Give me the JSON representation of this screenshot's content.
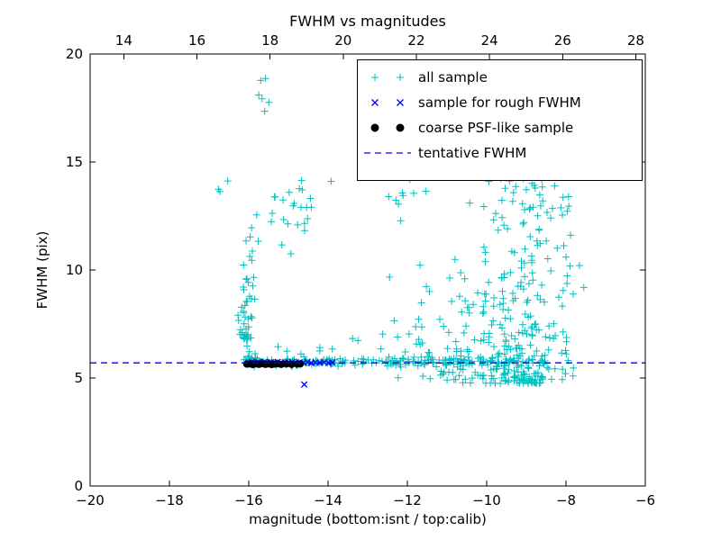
{
  "figure": {
    "background": "#ffffff"
  },
  "colors": {
    "all_sample": "#00bfbf",
    "rough_fwhm": "#0000ff",
    "psf_like": "#000000",
    "tentative_line": "#0000ff",
    "axis": "#000000"
  },
  "chart_data": {
    "type": "scatter",
    "title": "FWHM vs magnitudes",
    "xlabel": "magnitude (bottom:isnt / top:calib)",
    "ylabel": "FWHM (pix)",
    "grid": false,
    "x_axis_bottom": {
      "min": -20,
      "max": -6,
      "ticks": [
        -20,
        -18,
        -16,
        -14,
        -12,
        -10,
        -8,
        -6
      ],
      "tick_labels": [
        "−20",
        "−18",
        "−16",
        "−14",
        "−12",
        "−10",
        "−8",
        "−6"
      ]
    },
    "x_axis_top": {
      "min": 13.08,
      "max": 28.26,
      "ticks": [
        14,
        16,
        18,
        20,
        22,
        24,
        26,
        28
      ],
      "tick_labels": [
        "14",
        "16",
        "18",
        "20",
        "22",
        "24",
        "26",
        "28"
      ]
    },
    "y_axis": {
      "min": 0,
      "max": 20,
      "ticks": [
        0,
        5,
        10,
        15,
        20
      ],
      "tick_labels": [
        "0",
        "5",
        "10",
        "15",
        "20"
      ]
    },
    "tentative_fwhm": 5.7,
    "legend": {
      "position": "upper right",
      "items": [
        {
          "label": "all sample"
        },
        {
          "label": "sample for rough FWHM"
        },
        {
          "label": "coarse PSF-like sample"
        },
        {
          "label": "tentative FWHM"
        }
      ]
    },
    "series": [
      {
        "id": "all-sample",
        "name": "all sample",
        "marker": "plus",
        "color": "#00bfbf",
        "seed": 42,
        "clusters": [
          {
            "name": "fwhm-band",
            "n": 150,
            "x": {
              "dist": "uniform",
              "min": -16.15,
              "max": -8.5
            },
            "y": {
              "dist": "normal",
              "mean": 5.75,
              "sd": 0.1
            }
          },
          {
            "name": "fwhm-band-dense-left",
            "n": 45,
            "x": {
              "dist": "uniform",
              "min": -16.1,
              "max": -13.6
            },
            "y": {
              "dist": "normal",
              "mean": 5.72,
              "sd": 0.08
            }
          },
          {
            "name": "band-halo",
            "n": 20,
            "x": {
              "dist": "uniform",
              "min": -15.6,
              "max": -8.8
            },
            "y": {
              "dist": "uniform",
              "min": 5.35,
              "max": 6.5
            }
          },
          {
            "name": "bright-riser",
            "n": 50,
            "x": {
              "dist": "normal",
              "mean": -16.02,
              "sd": 0.09,
              "min": -16.3,
              "max": -15.75
            },
            "y": {
              "dist": "pow",
              "min": 5.85,
              "max": 9.7,
              "pow": 1.7
            }
          },
          {
            "name": "riser-top",
            "n": 7,
            "x": {
              "dist": "normal",
              "mean": -16.0,
              "sd": 0.1,
              "min": -16.25,
              "max": -15.75
            },
            "y": {
              "dist": "uniform",
              "min": 10.2,
              "max": 12.0
            }
          },
          {
            "name": "tall-left-outliers",
            "n": 6,
            "x": {
              "dist": "uniform",
              "min": -15.85,
              "max": -15.45
            },
            "y": {
              "dist": "uniform",
              "min": 16.5,
              "max": 19.2
            }
          },
          {
            "name": "upper-left-cluster",
            "n": 26,
            "x": {
              "dist": "normal",
              "mean": -14.9,
              "sd": 0.5,
              "min": -15.8,
              "max": -13.9
            },
            "y": {
              "dist": "normal",
              "mean": 12.9,
              "sd": 0.9
            }
          },
          {
            "name": "far-left-sparse",
            "n": 3,
            "x": {
              "dist": "uniform",
              "min": -16.9,
              "max": -16.5
            },
            "y": {
              "dist": "uniform",
              "min": 12.8,
              "max": 14.2
            }
          },
          {
            "name": "mid-low-sparse",
            "n": 14,
            "x": {
              "dist": "uniform",
              "min": -13.7,
              "max": -11.6
            },
            "y": {
              "dist": "uniform",
              "min": 5.9,
              "max": 8.8
            }
          },
          {
            "name": "mid-high-sparse",
            "n": 10,
            "x": {
              "dist": "uniform",
              "min": -12.7,
              "max": -11.4
            },
            "y": {
              "dist": "uniform",
              "min": 11.8,
              "max": 14.6
            }
          },
          {
            "name": "faint-cloud-core",
            "n": 260,
            "x": {
              "dist": "normal",
              "mean": -9.05,
              "sd": 0.62,
              "min": -10.6,
              "max": -7.55
            },
            "y": {
              "dist": "pow",
              "min": 4.75,
              "max": 15.0,
              "pow": 2.1
            }
          },
          {
            "name": "faint-cloud-fringe",
            "n": 90,
            "x": {
              "dist": "normal",
              "mean": -10.4,
              "sd": 0.9,
              "min": -12.45,
              "max": -8.2
            },
            "y": {
              "dist": "pow",
              "min": 4.9,
              "max": 10.5,
              "pow": 1.9
            }
          },
          {
            "name": "faint-cloud-top",
            "n": 18,
            "x": {
              "dist": "normal",
              "mean": -9.6,
              "sd": 0.7,
              "min": -11.0,
              "max": -8.3
            },
            "y": {
              "dist": "uniform",
              "min": 12.5,
              "max": 14.9
            }
          }
        ]
      },
      {
        "id": "rough-fwhm",
        "name": "sample for rough FWHM",
        "marker": "x",
        "color": "#0000ff",
        "points": [
          [
            -16.0,
            5.71
          ],
          [
            -15.92,
            5.74
          ],
          [
            -15.84,
            5.69
          ],
          [
            -15.76,
            5.73
          ],
          [
            -15.68,
            5.7
          ],
          [
            -15.6,
            5.75
          ],
          [
            -15.52,
            5.68
          ],
          [
            -15.44,
            5.72
          ],
          [
            -15.36,
            5.7
          ],
          [
            -15.27,
            5.74
          ],
          [
            -15.18,
            5.69
          ],
          [
            -15.09,
            5.72
          ],
          [
            -15.0,
            5.7
          ],
          [
            -14.91,
            5.73
          ],
          [
            -14.82,
            5.68
          ],
          [
            -14.72,
            5.72
          ],
          [
            -14.62,
            5.7
          ],
          [
            -14.52,
            5.74
          ],
          [
            -14.42,
            5.69
          ],
          [
            -14.32,
            5.72
          ],
          [
            -14.21,
            5.7
          ],
          [
            -14.1,
            5.73
          ],
          [
            -13.99,
            5.69
          ],
          [
            -13.89,
            5.72
          ],
          [
            -14.6,
            4.7
          ]
        ]
      },
      {
        "id": "psf-like",
        "name": "coarse PSF-like sample",
        "marker": "circle",
        "color": "#000000",
        "points": [
          [
            -16.05,
            5.64
          ],
          [
            -15.97,
            5.66
          ],
          [
            -15.9,
            5.62
          ],
          [
            -15.82,
            5.65
          ],
          [
            -15.74,
            5.63
          ],
          [
            -15.66,
            5.66
          ],
          [
            -15.58,
            5.63
          ],
          [
            -15.5,
            5.65
          ],
          [
            -15.42,
            5.62
          ],
          [
            -15.34,
            5.64
          ],
          [
            -15.26,
            5.66
          ],
          [
            -15.18,
            5.63
          ],
          [
            -15.05,
            5.65
          ],
          [
            -14.92,
            5.63
          ],
          [
            -14.78,
            5.64
          ],
          [
            -14.7,
            5.65
          ]
        ]
      },
      {
        "id": "tentative",
        "name": "tentative FWHM",
        "type": "hline",
        "style": "dashed",
        "color": "#0000ff",
        "y": 5.7
      }
    ]
  }
}
